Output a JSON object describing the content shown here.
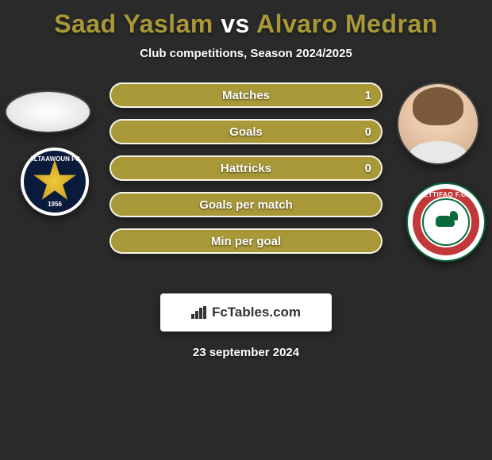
{
  "title": {
    "player1": "Saad Yaslam",
    "vs": "vs",
    "player2": "Alvaro Medran",
    "player1_color": "#a89838",
    "vs_color": "#ffffff",
    "player2_color": "#a89838"
  },
  "subtitle": "Club competitions, Season 2024/2025",
  "left_club": {
    "label": "ALTAAWOUN FC",
    "year": "1956"
  },
  "right_club": {
    "label": "ETTIFAQ F.C."
  },
  "bars": [
    {
      "label": "Matches",
      "left_value": "",
      "right_value": "1",
      "bg": "#a89838",
      "left_fill_color": "#a89838",
      "left_fill_pct": 0,
      "right_fill_color": "#a89838",
      "right_fill_pct": 100
    },
    {
      "label": "Goals",
      "left_value": "",
      "right_value": "0",
      "bg": "#a89838",
      "left_fill_color": "#a89838",
      "left_fill_pct": 0,
      "right_fill_color": "#a89838",
      "right_fill_pct": 100
    },
    {
      "label": "Hattricks",
      "left_value": "",
      "right_value": "0",
      "bg": "#a89838",
      "left_fill_color": "#a89838",
      "left_fill_pct": 0,
      "right_fill_color": "#a89838",
      "right_fill_pct": 100
    },
    {
      "label": "Goals per match",
      "left_value": "",
      "right_value": "",
      "bg": "#a89838",
      "left_fill_color": "#a89838",
      "left_fill_pct": 0,
      "right_fill_color": "#a89838",
      "right_fill_pct": 100
    },
    {
      "label": "Min per goal",
      "left_value": "",
      "right_value": "",
      "bg": "#a89838",
      "left_fill_color": "#a89838",
      "left_fill_pct": 0,
      "right_fill_color": "#a89838",
      "right_fill_pct": 100
    }
  ],
  "watermark": "FcTables.com",
  "date": "23 september 2024",
  "colors": {
    "background": "#2a2a2a",
    "bar_border": "#ffffff"
  }
}
